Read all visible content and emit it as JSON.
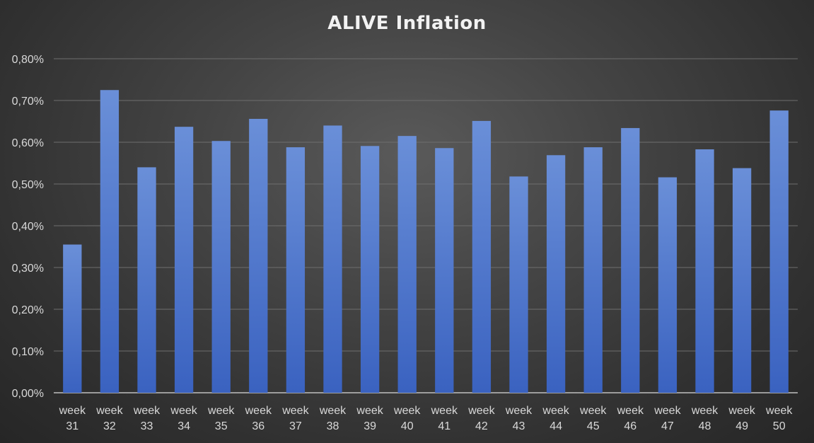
{
  "chart_data": {
    "type": "bar",
    "title": "ALIVE Inflation",
    "xlabel": "",
    "ylabel": "",
    "ylim": [
      0,
      0.8
    ],
    "y_ticks": [
      "0,00%",
      "0,10%",
      "0,20%",
      "0,30%",
      "0,40%",
      "0,50%",
      "0,60%",
      "0,70%",
      "0,80%"
    ],
    "y_tick_values": [
      0,
      0.1,
      0.2,
      0.3,
      0.4,
      0.5,
      0.6,
      0.7,
      0.8
    ],
    "grid": true,
    "bar_color": "#4f7bd0",
    "categories": [
      [
        "week",
        "31"
      ],
      [
        "week",
        "32"
      ],
      [
        "week",
        "33"
      ],
      [
        "week",
        "34"
      ],
      [
        "week",
        "35"
      ],
      [
        "week",
        "36"
      ],
      [
        "week",
        "37"
      ],
      [
        "week",
        "38"
      ],
      [
        "week",
        "39"
      ],
      [
        "week",
        "40"
      ],
      [
        "week",
        "41"
      ],
      [
        "week",
        "42"
      ],
      [
        "week",
        "43"
      ],
      [
        "week",
        "44"
      ],
      [
        "week",
        "45"
      ],
      [
        "week",
        "46"
      ],
      [
        "week",
        "47"
      ],
      [
        "week",
        "48"
      ],
      [
        "week",
        "49"
      ],
      [
        "week",
        "50"
      ]
    ],
    "values": [
      0.355,
      0.725,
      0.54,
      0.637,
      0.603,
      0.656,
      0.588,
      0.64,
      0.591,
      0.615,
      0.586,
      0.651,
      0.518,
      0.569,
      0.588,
      0.634,
      0.516,
      0.583,
      0.538,
      0.676
    ]
  }
}
